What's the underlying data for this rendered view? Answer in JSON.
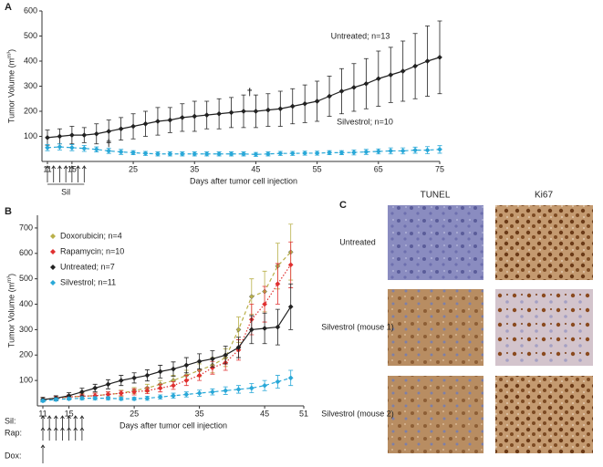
{
  "chart_data": [
    {
      "type": "line",
      "panel": "A",
      "xlabel": "Days after tumor cell injection",
      "ylabel": "Tumor Volume (mm³)",
      "x": [
        11,
        13,
        15,
        17,
        19,
        21,
        23,
        25,
        27,
        29,
        31,
        33,
        35,
        37,
        39,
        41,
        43,
        45,
        47,
        49,
        51,
        53,
        55,
        57,
        59,
        61,
        63,
        65,
        67,
        69,
        71,
        73,
        75
      ],
      "series": [
        {
          "name": "Untreated; n=13",
          "color": "#222222",
          "linestyle": "solid",
          "values": [
            95,
            100,
            105,
            105,
            110,
            120,
            130,
            140,
            150,
            160,
            165,
            175,
            180,
            185,
            190,
            195,
            200,
            200,
            205,
            210,
            220,
            230,
            240,
            260,
            280,
            295,
            310,
            330,
            345,
            360,
            380,
            400,
            415
          ],
          "errors": [
            30,
            30,
            35,
            30,
            40,
            45,
            45,
            50,
            50,
            55,
            50,
            55,
            60,
            55,
            60,
            60,
            65,
            65,
            65,
            70,
            70,
            75,
            80,
            80,
            90,
            95,
            100,
            110,
            110,
            120,
            130,
            140,
            145
          ]
        },
        {
          "name": "Silvestrol; n=10",
          "color": "#29a8d8",
          "linestyle": "dashed",
          "values": [
            55,
            58,
            55,
            52,
            48,
            42,
            38,
            35,
            32,
            30,
            30,
            30,
            30,
            30,
            30,
            30,
            30,
            28,
            30,
            32,
            32,
            33,
            33,
            35,
            35,
            36,
            38,
            40,
            42,
            42,
            45,
            45,
            48
          ],
          "errors": [
            12,
            12,
            12,
            12,
            10,
            10,
            10,
            8,
            8,
            8,
            8,
            8,
            8,
            8,
            8,
            8,
            8,
            8,
            8,
            8,
            8,
            8,
            8,
            8,
            8,
            10,
            10,
            10,
            12,
            12,
            12,
            14,
            15
          ]
        }
      ],
      "xlim": [
        11,
        75
      ],
      "xticks": [
        11,
        15,
        25,
        35,
        45,
        55,
        65,
        75
      ],
      "ylim": [
        0,
        600
      ],
      "yticks": [
        100,
        200,
        300,
        400,
        500,
        600
      ],
      "annotations": [
        {
          "text": "†",
          "x": 21,
          "y": 70
        },
        {
          "text": "†",
          "x": 44,
          "y": 275
        }
      ],
      "schedule": [
        {
          "label": "Sil",
          "days": [
            11,
            12,
            13,
            14,
            15,
            16,
            17
          ]
        }
      ]
    },
    {
      "type": "line",
      "panel": "B",
      "xlabel": "Days after tumor cell injection",
      "ylabel": "Tumor Volume (mm³)",
      "x": [
        11,
        13,
        15,
        17,
        19,
        21,
        23,
        25,
        27,
        29,
        31,
        33,
        35,
        37,
        39,
        41,
        43,
        45,
        47,
        49
      ],
      "series": [
        {
          "name": "Doxorubicin; n=4",
          "color": "#b9b04a",
          "linestyle": "dashed",
          "values": [
            25,
            30,
            35,
            38,
            40,
            45,
            50,
            60,
            70,
            85,
            100,
            120,
            140,
            160,
            190,
            300,
            430,
            450,
            550,
            605
          ],
          "errors": [
            8,
            8,
            8,
            10,
            10,
            10,
            12,
            12,
            15,
            15,
            20,
            20,
            25,
            30,
            35,
            50,
            70,
            80,
            90,
            110
          ]
        },
        {
          "name": "Rapamycin; n=10",
          "color": "#e03030",
          "linestyle": "dotted",
          "values": [
            25,
            30,
            35,
            38,
            40,
            45,
            50,
            55,
            60,
            70,
            80,
            100,
            120,
            150,
            170,
            220,
            340,
            400,
            480,
            555
          ],
          "errors": [
            8,
            8,
            8,
            8,
            10,
            10,
            10,
            12,
            12,
            15,
            15,
            20,
            20,
            25,
            30,
            40,
            60,
            70,
            80,
            90
          ]
        },
        {
          "name": "Untreated; n=7",
          "color": "#222222",
          "linestyle": "solid",
          "values": [
            25,
            30,
            40,
            55,
            70,
            85,
            100,
            110,
            120,
            135,
            145,
            160,
            175,
            185,
            200,
            230,
            300,
            305,
            310,
            390
          ],
          "errors": [
            8,
            10,
            12,
            15,
            15,
            18,
            20,
            20,
            22,
            25,
            28,
            30,
            30,
            32,
            35,
            40,
            55,
            60,
            70,
            90
          ]
        },
        {
          "name": "Silvestrol; n=11",
          "color": "#29a8d8",
          "linestyle": "dashed",
          "values": [
            20,
            25,
            28,
            30,
            30,
            30,
            28,
            28,
            30,
            35,
            40,
            45,
            50,
            55,
            60,
            65,
            70,
            80,
            95,
            110
          ],
          "errors": [
            5,
            5,
            5,
            6,
            6,
            6,
            6,
            6,
            8,
            8,
            10,
            10,
            12,
            12,
            15,
            15,
            18,
            20,
            25,
            30
          ]
        }
      ],
      "xlim": [
        11,
        51
      ],
      "xticks": [
        11,
        15,
        25,
        35,
        45,
        51
      ],
      "ylim": [
        0,
        750
      ],
      "yticks": [
        100,
        200,
        300,
        400,
        500,
        600,
        700
      ],
      "legend": "upper left",
      "schedule": [
        {
          "label": "Sil:",
          "days": [
            11,
            12,
            13,
            14,
            15,
            16,
            17
          ]
        },
        {
          "label": "Rap:",
          "days": [
            11,
            12,
            13,
            14,
            15,
            16,
            17
          ]
        },
        {
          "label": "Dox:",
          "days": [
            11
          ]
        }
      ]
    }
  ],
  "panel_c": {
    "panel": "C",
    "columns": [
      "TUNEL",
      "Ki67"
    ],
    "rows": [
      "Untreated",
      "Silvestrol (mouse 1)",
      "Silvestrol (mouse 2)"
    ]
  }
}
